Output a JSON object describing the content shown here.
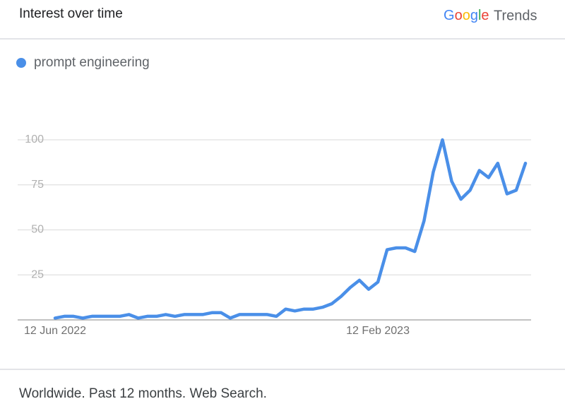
{
  "header": {
    "title": "Interest over time",
    "brand": "Google",
    "product": "Trends"
  },
  "chart_data": {
    "type": "line",
    "categories": [
      "12 Jun 2022",
      null,
      null,
      null,
      null,
      null,
      null,
      null,
      null,
      null,
      null,
      null,
      null,
      null,
      null,
      null,
      null,
      null,
      null,
      null,
      null,
      null,
      null,
      null,
      null,
      null,
      null,
      null,
      null,
      null,
      null,
      null,
      null,
      null,
      null,
      "12 Feb 2023",
      null,
      null,
      null,
      null,
      null,
      null,
      null,
      null,
      null,
      null,
      null,
      null,
      null,
      null,
      null,
      null
    ],
    "series": [
      {
        "name": "prompt engineering",
        "color": "#4a8fe8",
        "values": [
          1,
          2,
          2,
          1,
          2,
          2,
          2,
          2,
          3,
          1,
          2,
          2,
          3,
          2,
          3,
          3,
          3,
          4,
          4,
          1,
          3,
          3,
          3,
          3,
          2,
          6,
          5,
          6,
          6,
          7,
          9,
          13,
          18,
          22,
          17,
          21,
          39,
          40,
          40,
          38,
          55,
          82,
          100,
          77,
          67,
          72,
          83,
          79,
          87,
          70,
          72,
          87
        ]
      }
    ],
    "ylim": [
      0,
      100
    ],
    "yticks": [
      25,
      50,
      75,
      100
    ],
    "grid": true,
    "legend": "top-left"
  },
  "footer": {
    "text": "Worldwide. Past 12 months. Web Search."
  }
}
